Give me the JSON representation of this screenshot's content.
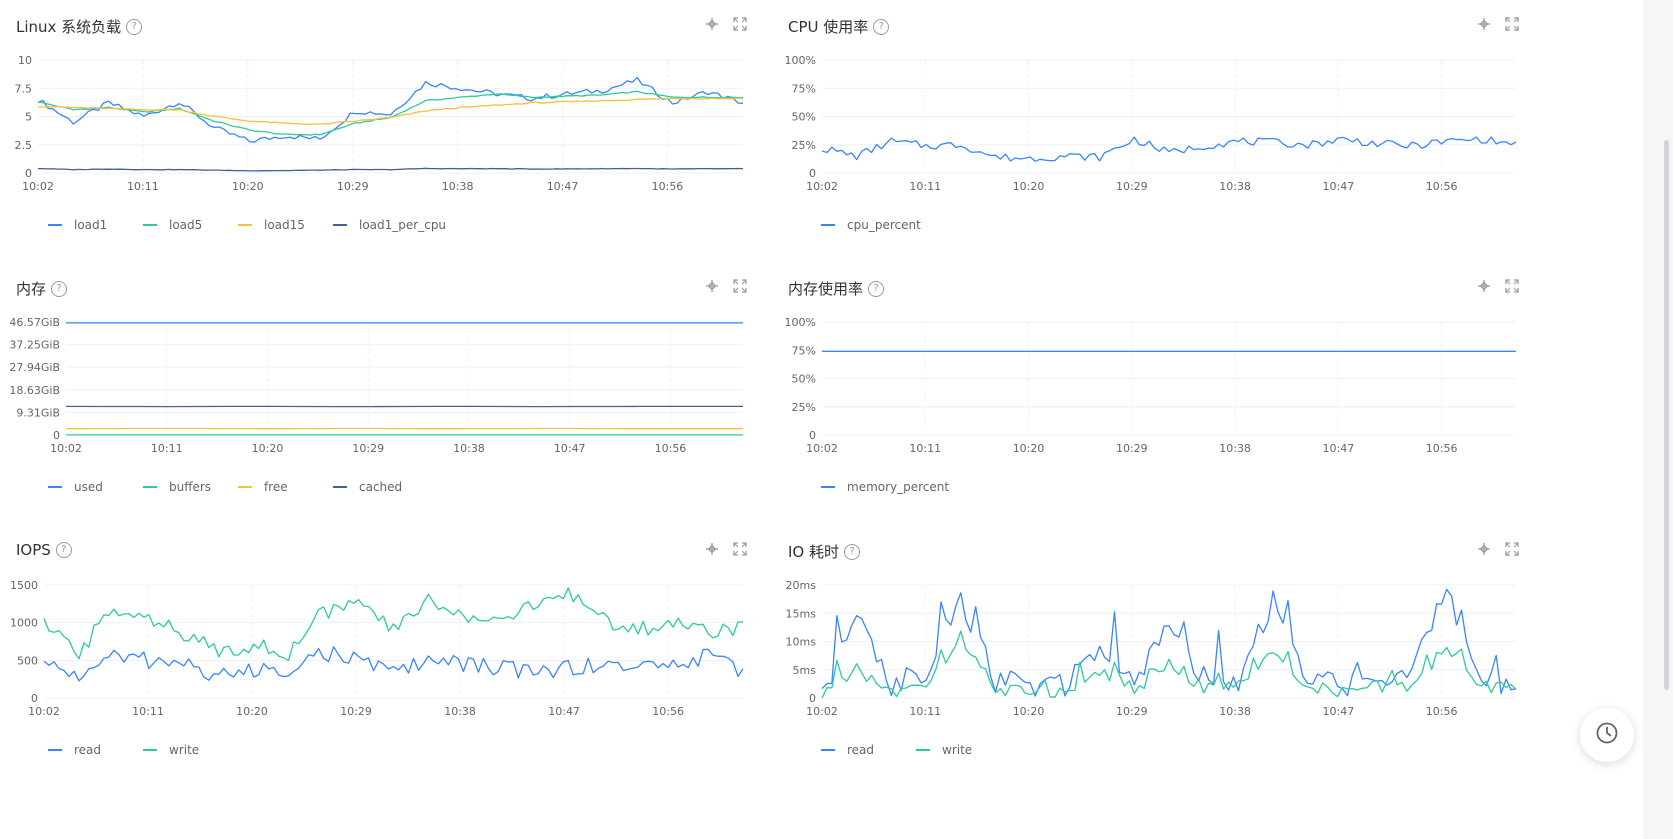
{
  "colors": {
    "blue": "#3a84ff",
    "green": "#2dcb9b",
    "yellow": "#fcbf3d",
    "navy": "#46608f",
    "grid": "#eef0f4",
    "axis": "#63656e"
  },
  "icons": {
    "help": "question-circle-icon",
    "crosshair": "crosshair-icon",
    "fullscreen": "fullscreen-icon",
    "history": "clock-icon"
  },
  "time_ticks": [
    "10:02",
    "10:11",
    "10:20",
    "10:29",
    "10:38",
    "10:47",
    "10:56"
  ],
  "panels": [
    {
      "title": "Linux 系统负载",
      "help": "?",
      "legend": [
        "load1",
        "load5",
        "load15",
        "load1_per_cpu"
      ],
      "yticks": [
        "10",
        "7.5",
        "5",
        "2.5",
        "0"
      ]
    },
    {
      "title": "CPU 使用率",
      "help": "?",
      "legend": [
        "cpu_percent"
      ],
      "yticks": [
        "100%",
        "75%",
        "50%",
        "25%",
        "0"
      ]
    },
    {
      "title": "内存",
      "help": "?",
      "legend": [
        "used",
        "buffers",
        "free",
        "cached"
      ],
      "yticks": [
        "46.57GiB",
        "37.25GiB",
        "27.94GiB",
        "18.63GiB",
        "9.31GiB",
        "0"
      ]
    },
    {
      "title": "内存使用率",
      "help": "?",
      "legend": [
        "memory_percent"
      ],
      "yticks": [
        "100%",
        "75%",
        "50%",
        "25%",
        "0"
      ]
    },
    {
      "title": "IOPS",
      "help": "?",
      "legend": [
        "read",
        "write"
      ],
      "yticks": [
        "1500",
        "1000",
        "500",
        "0"
      ]
    },
    {
      "title": "IO 耗时",
      "help": "?",
      "legend": [
        "read",
        "write"
      ],
      "yticks": [
        "20ms",
        "15ms",
        "10ms",
        "5ms",
        "0"
      ]
    }
  ],
  "chart_data": [
    {
      "type": "line",
      "title": "Linux 系统负载",
      "ylim": [
        0,
        10
      ],
      "x": [
        "10:02",
        "10:05",
        "10:08",
        "10:11",
        "10:14",
        "10:17",
        "10:20",
        "10:23",
        "10:26",
        "10:29",
        "10:32",
        "10:35",
        "10:38",
        "10:41",
        "10:44",
        "10:47",
        "10:50",
        "10:53",
        "10:56",
        "10:59",
        "11:01"
      ],
      "series": [
        {
          "name": "load1",
          "values": [
            6.5,
            4.5,
            6.2,
            5.0,
            6.3,
            4.0,
            2.8,
            3.3,
            3.0,
            5.5,
            5.2,
            8.0,
            7.5,
            7.0,
            6.6,
            7.0,
            7.3,
            8.2,
            6.2,
            7.2,
            6.2
          ]
        },
        {
          "name": "load5",
          "values": [
            6.3,
            5.6,
            5.8,
            5.4,
            5.7,
            4.6,
            3.8,
            3.4,
            3.4,
            4.4,
            4.9,
            6.4,
            6.7,
            7.0,
            6.7,
            6.8,
            6.9,
            7.2,
            6.7,
            6.7,
            6.7
          ]
        },
        {
          "name": "load15",
          "values": [
            5.9,
            5.8,
            5.7,
            5.6,
            5.6,
            5.0,
            4.6,
            4.4,
            4.3,
            4.6,
            4.9,
            5.5,
            5.8,
            6.0,
            6.2,
            6.3,
            6.4,
            6.5,
            6.6,
            6.6,
            6.6
          ]
        },
        {
          "name": "load1_per_cpu",
          "values": [
            0.4,
            0.3,
            0.35,
            0.3,
            0.3,
            0.25,
            0.2,
            0.22,
            0.25,
            0.3,
            0.3,
            0.4,
            0.38,
            0.38,
            0.35,
            0.36,
            0.38,
            0.4,
            0.35,
            0.38,
            0.38
          ]
        }
      ]
    },
    {
      "type": "line",
      "title": "CPU 使用率",
      "ylim": [
        0,
        100
      ],
      "x": [
        "10:02",
        "10:05",
        "10:08",
        "10:11",
        "10:14",
        "10:17",
        "10:20",
        "10:23",
        "10:26",
        "10:29",
        "10:32",
        "10:35",
        "10:38",
        "10:41",
        "10:44",
        "10:47",
        "10:50",
        "10:53",
        "10:56",
        "10:59",
        "11:01"
      ],
      "series": [
        {
          "name": "cpu_percent",
          "values": [
            22,
            15,
            28,
            24,
            25,
            14,
            13,
            15,
            14,
            30,
            18,
            24,
            28,
            27,
            25,
            30,
            26,
            24,
            28,
            30,
            25
          ]
        }
      ]
    },
    {
      "type": "line",
      "title": "内存",
      "ylim": [
        0,
        46.57
      ],
      "x": [
        "10:02",
        "10:11",
        "10:20",
        "10:29",
        "10:38",
        "10:47",
        "10:56",
        "11:01"
      ],
      "series": [
        {
          "name": "used",
          "values": [
            46.2,
            46.2,
            46.2,
            46.2,
            46.2,
            46.2,
            46.2,
            46.2
          ]
        },
        {
          "name": "buffers",
          "values": [
            0.05,
            0.05,
            0.05,
            0.05,
            0.05,
            0.05,
            0.05,
            0.05
          ]
        },
        {
          "name": "free",
          "values": [
            2.6,
            2.7,
            2.6,
            2.7,
            2.6,
            2.7,
            2.6,
            2.6
          ]
        },
        {
          "name": "cached",
          "values": [
            11.8,
            11.7,
            11.8,
            11.7,
            11.8,
            11.7,
            11.8,
            11.8
          ]
        }
      ]
    },
    {
      "type": "line",
      "title": "内存使用率",
      "ylim": [
        0,
        100
      ],
      "x": [
        "10:02",
        "10:11",
        "10:20",
        "10:29",
        "10:38",
        "10:47",
        "10:56",
        "11:01"
      ],
      "series": [
        {
          "name": "memory_percent",
          "values": [
            74,
            74,
            74,
            74,
            74,
            74,
            74,
            74
          ]
        }
      ]
    },
    {
      "type": "line",
      "title": "IOPS",
      "ylim": [
        0,
        1500
      ],
      "x": [
        "10:02",
        "10:05",
        "10:08",
        "10:11",
        "10:14",
        "10:17",
        "10:20",
        "10:23",
        "10:26",
        "10:29",
        "10:32",
        "10:35",
        "10:38",
        "10:41",
        "10:44",
        "10:47",
        "10:50",
        "10:53",
        "10:56",
        "10:59",
        "11:01"
      ],
      "series": [
        {
          "name": "read",
          "values": [
            450,
            300,
            550,
            500,
            450,
            300,
            350,
            400,
            600,
            500,
            350,
            500,
            450,
            400,
            350,
            400,
            450,
            400,
            450,
            550,
            350
          ]
        },
        {
          "name": "write",
          "values": [
            950,
            600,
            1200,
            1100,
            800,
            650,
            700,
            600,
            1150,
            1250,
            900,
            1300,
            1100,
            1050,
            1200,
            1400,
            1050,
            900,
            1000,
            900,
            950
          ]
        }
      ]
    },
    {
      "type": "line",
      "title": "IO 耗时",
      "ylim": [
        0,
        20
      ],
      "x": [
        "10:02",
        "10:05",
        "10:08",
        "10:11",
        "10:14",
        "10:17",
        "10:20",
        "10:23",
        "10:26",
        "10:29",
        "10:32",
        "10:35",
        "10:38",
        "10:41",
        "10:44",
        "10:47",
        "10:50",
        "10:53",
        "10:56",
        "10:59",
        "11:01"
      ],
      "series": [
        {
          "name": "read",
          "values": [
            1,
            14,
            2,
            4,
            18,
            3,
            2,
            2,
            8,
            3,
            12,
            4,
            3,
            17,
            3,
            2,
            3,
            4,
            19,
            3,
            2
          ]
        },
        {
          "name": "write",
          "values": [
            0.5,
            5,
            1,
            2,
            11,
            1.5,
            1,
            1,
            5,
            1.5,
            6,
            2,
            2,
            8,
            2,
            1,
            2,
            2,
            9,
            2,
            2
          ]
        }
      ]
    }
  ]
}
